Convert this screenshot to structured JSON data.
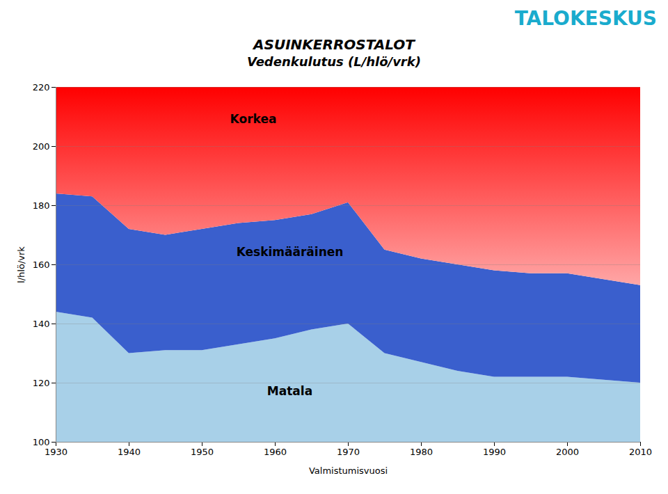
{
  "chart_data": {
    "type": "area",
    "title": "ASUINKERROSTALOT",
    "subtitle": "Vedenkulutus (L/hlö/vrk)",
    "logo_text": "TALOKESKUS",
    "logo_color": "#1AABCD",
    "xlabel": "Valmistumisvuosi",
    "ylabel": "l/hlö/vrk",
    "x": [
      1930,
      1935,
      1940,
      1945,
      1950,
      1955,
      1960,
      1965,
      1970,
      1975,
      1980,
      1985,
      1990,
      1995,
      2000,
      2005,
      2010
    ],
    "series": [
      {
        "name": "Matala",
        "color": "#A8D0E8",
        "values": [
          144,
          142,
          130,
          131,
          131,
          133,
          135,
          138,
          140,
          130,
          127,
          124,
          122,
          122,
          122,
          121,
          120
        ]
      },
      {
        "name": "Keskimääräinen",
        "color": "#3A5FCD",
        "values": [
          184,
          183,
          172,
          170,
          172,
          174,
          175,
          177,
          181,
          165,
          162,
          160,
          158,
          157,
          157,
          155,
          153
        ]
      },
      {
        "name": "Korkea",
        "color": "#FF0000",
        "values": [
          220,
          220,
          220,
          220,
          220,
          220,
          220,
          220,
          220,
          220,
          220,
          220,
          220,
          220,
          220,
          220,
          220
        ]
      }
    ],
    "xlim": [
      1930,
      2010
    ],
    "ylim": [
      100,
      220
    ],
    "xticks": [
      1930,
      1940,
      1950,
      1960,
      1970,
      1980,
      1990,
      2000,
      2010
    ],
    "yticks": [
      100,
      120,
      140,
      160,
      180,
      200,
      220
    ],
    "grid": true,
    "annotations": [
      {
        "text": "Korkea",
        "x": 1957,
        "y": 208
      },
      {
        "text": "Keskimääräinen",
        "x": 1962,
        "y": 163
      },
      {
        "text": "Matala",
        "x": 1962,
        "y": 116
      }
    ]
  }
}
